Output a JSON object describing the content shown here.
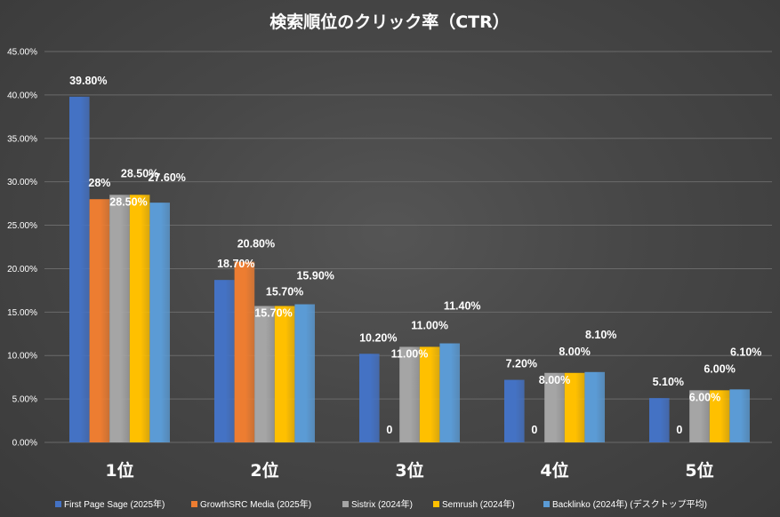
{
  "chart_data": {
    "type": "bar",
    "title": "検索順位のクリック率（CTR）",
    "categories": [
      "1位",
      "2位",
      "3位",
      "4位",
      "5位"
    ],
    "ylim": [
      0,
      45
    ],
    "yticks": [
      "0.00%",
      "5.00%",
      "10.00%",
      "15.00%",
      "20.00%",
      "25.00%",
      "30.00%",
      "35.00%",
      "40.00%",
      "45.00%"
    ],
    "grid": true,
    "legend_position": "bottom",
    "series": [
      {
        "name": "First Page Sage (2025年)",
        "color": "#4472c4",
        "values": [
          39.8,
          18.7,
          10.2,
          7.2,
          5.1
        ],
        "labels": [
          "39.80%",
          "18.70%",
          "10.20%",
          "7.20%",
          "5.10%"
        ]
      },
      {
        "name": "GrowthSRC Media (2025年)",
        "color": "#ed7d31",
        "values": [
          28,
          20.8,
          0,
          0,
          0
        ],
        "labels": [
          "28%",
          "20.80%",
          "0",
          "0",
          "0"
        ]
      },
      {
        "name": "Sistrix (2024年)",
        "color": "#a5a5a5",
        "values": [
          28.5,
          15.7,
          11.0,
          8.0,
          6.0
        ],
        "labels": [
          "28.50%",
          "15.70%",
          "11.00%",
          "8.00%",
          "6.00%"
        ]
      },
      {
        "name": "Semrush (2024年)",
        "color": "#ffc000",
        "values": [
          28.5,
          15.7,
          11.0,
          8.0,
          6.0
        ],
        "labels": [
          "28.50%",
          "15.70%",
          "11.00%",
          "8.00%",
          "6.00%"
        ]
      },
      {
        "name": "Backlinko (2024年) (デスクトップ平均)",
        "color": "#5b9bd5",
        "values": [
          27.6,
          15.9,
          11.4,
          8.1,
          6.1
        ],
        "labels": [
          "27.60%",
          "15.90%",
          "11.40%",
          "8.10%",
          "6.10%"
        ]
      }
    ]
  }
}
